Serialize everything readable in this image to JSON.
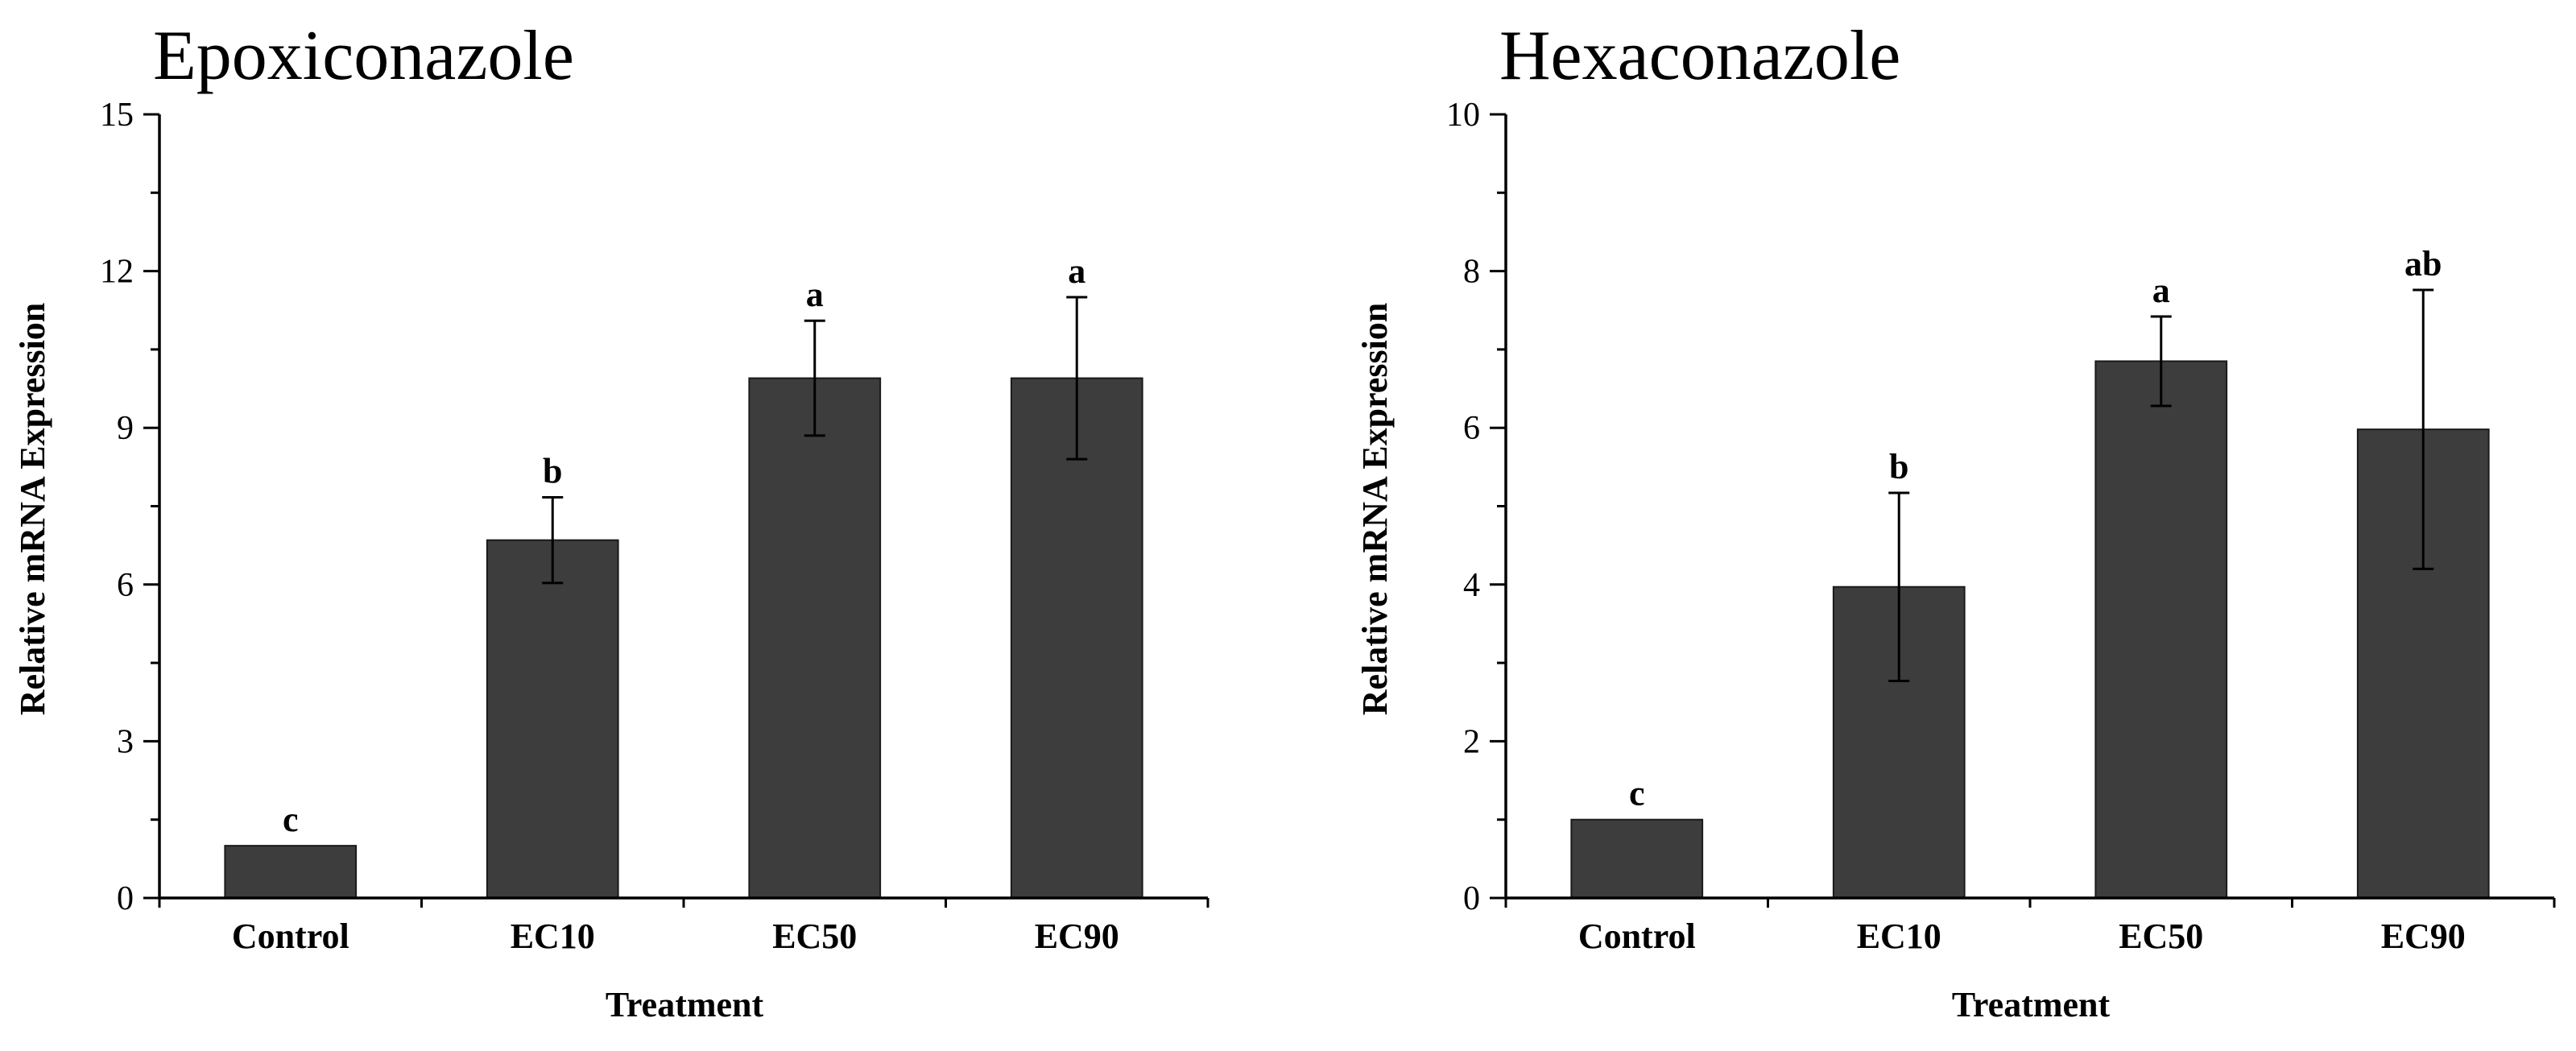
{
  "bar_color": "#3d3d3d",
  "axis_color": "#000000",
  "chart_data": [
    {
      "type": "bar",
      "title": "Epoxiconazole",
      "xlabel": "Treatment",
      "ylabel": "Relative mRNA Expression",
      "ylim": [
        0,
        15
      ],
      "yticks": [
        0,
        3,
        6,
        9,
        12,
        15
      ],
      "categories": [
        "Control",
        "EC10",
        "EC50",
        "EC90"
      ],
      "values": [
        1.0,
        6.85,
        9.95,
        9.95
      ],
      "errors": [
        0,
        0.82,
        1.1,
        1.55
      ],
      "significance": [
        "c",
        "b",
        "a",
        "a"
      ]
    },
    {
      "type": "bar",
      "title": "Hexaconazole",
      "xlabel": "Treatment",
      "ylabel": "Relative mRNA Expression",
      "ylim": [
        0,
        10
      ],
      "yticks": [
        0,
        2,
        4,
        6,
        8,
        10
      ],
      "categories": [
        "Control",
        "EC10",
        "EC50",
        "EC90"
      ],
      "values": [
        1.0,
        3.97,
        6.85,
        5.98
      ],
      "errors": [
        0,
        1.2,
        0.57,
        1.78
      ],
      "significance": [
        "c",
        "b",
        "a",
        "ab"
      ]
    }
  ]
}
